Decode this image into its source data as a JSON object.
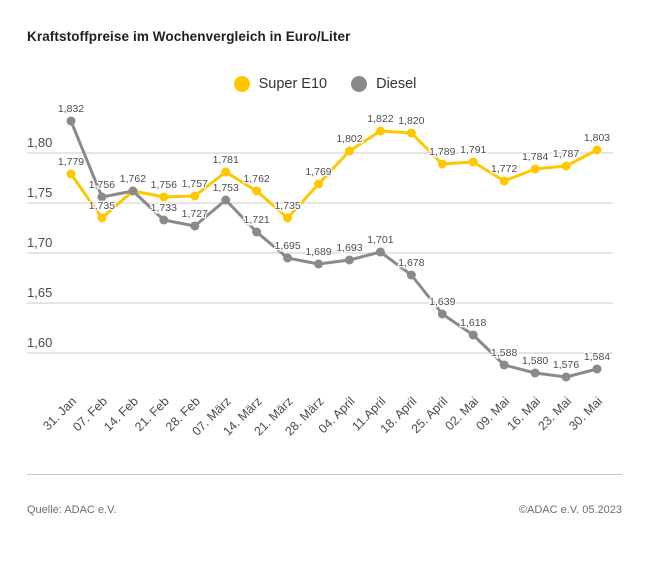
{
  "title": "Kraftstoffpreise im Wochenvergleich in Euro/Liter",
  "legend": {
    "items": [
      {
        "label": "Super E10",
        "color": "#FFC700"
      },
      {
        "label": "Diesel",
        "color": "#8A8A8A"
      }
    ]
  },
  "footer": {
    "source": "Quelle: ADAC e.V.",
    "copyright": "©ADAC e.V. 05.2023"
  },
  "chart_data": {
    "type": "line",
    "title": "Kraftstoffpreise im Wochenvergleich in Euro/Liter",
    "categories": [
      "31. Jan",
      "07. Feb",
      "14. Feb",
      "21. Feb",
      "28. Feb",
      "07. März",
      "14. März",
      "21. März",
      "28. März",
      "04. April",
      "11.April",
      "18. April",
      "25. April",
      "02. Mai",
      "09. Mai",
      "16. Mai",
      "23. Mai",
      "30. Mai"
    ],
    "series": [
      {
        "name": "Super E10",
        "color": "#FFC700",
        "values": [
          1.779,
          1.735,
          1.762,
          1.756,
          1.757,
          1.781,
          1.762,
          1.735,
          1.769,
          1.802,
          1.822,
          1.82,
          1.789,
          1.791,
          1.772,
          1.784,
          1.787,
          1.803
        ]
      },
      {
        "name": "Diesel",
        "color": "#8A8A8A",
        "values": [
          1.832,
          1.756,
          1.762,
          1.733,
          1.727,
          1.753,
          1.721,
          1.695,
          1.689,
          1.693,
          1.701,
          1.678,
          1.639,
          1.618,
          1.588,
          1.58,
          1.576,
          1.584
        ]
      }
    ],
    "y_ticks": [
      {
        "value": 1.8,
        "label": "1,80"
      },
      {
        "value": 1.75,
        "label": "1,75"
      },
      {
        "value": 1.7,
        "label": "1,70"
      },
      {
        "value": 1.65,
        "label": "1,65"
      },
      {
        "value": 1.6,
        "label": "1,60"
      }
    ],
    "ylim": [
      1.55,
      1.85
    ],
    "xlabel": "",
    "ylabel": "Euro/Liter",
    "grid": true,
    "legend_position": "top-center",
    "point_labels": true,
    "decimal_separator": ",",
    "style": {
      "grid_color": "#cbcbcb",
      "tick_text_color": "#4b4b4b",
      "point_label_color": "#4d4d4d"
    }
  }
}
